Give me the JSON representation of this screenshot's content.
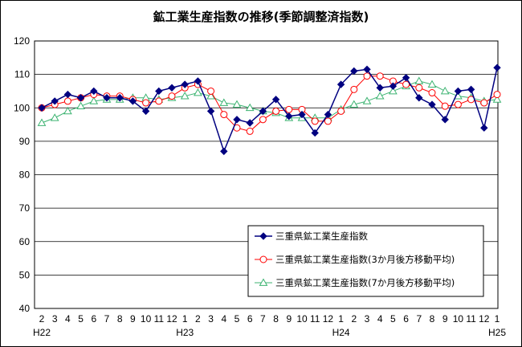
{
  "chart_data": {
    "type": "line",
    "title": "鉱工業生産指数の推移(季節調整済指数)",
    "ylim": [
      40,
      120
    ],
    "yticks": [
      40,
      50,
      60,
      70,
      80,
      90,
      100,
      110,
      120
    ],
    "categories": [
      "2",
      "3",
      "4",
      "5",
      "6",
      "7",
      "8",
      "9",
      "10",
      "11",
      "12",
      "1",
      "2",
      "3",
      "4",
      "5",
      "6",
      "7",
      "8",
      "9",
      "10",
      "11",
      "12",
      "1",
      "2",
      "3",
      "4",
      "5",
      "6",
      "7",
      "8",
      "9",
      "10",
      "11",
      "12",
      "1"
    ],
    "year_labels": [
      {
        "label": "H22",
        "index": 0
      },
      {
        "label": "H23",
        "index": 11
      },
      {
        "label": "H24",
        "index": 23
      },
      {
        "label": "H25",
        "index": 35
      }
    ],
    "grid": true,
    "legend_position": "bottom-right",
    "series": [
      {
        "name": "三重県鉱工業生産指数",
        "color": "#000080",
        "marker": "diamond",
        "values": [
          100,
          102,
          104,
          103,
          105,
          103,
          103,
          102,
          99,
          105,
          106,
          107,
          108,
          99,
          87,
          96.5,
          95.5,
          99,
          102.5,
          97.5,
          98,
          92.5,
          98,
          107,
          111,
          111.5,
          106,
          106.5,
          109,
          103,
          101,
          96.5,
          105,
          105.5,
          94,
          112
        ]
      },
      {
        "name": "三重県鉱工業生産指数(3か月後方移動平均)",
        "color": "#ff0000",
        "marker": "circle",
        "values": [
          100,
          101,
          102,
          103,
          104,
          103.5,
          103.5,
          102.5,
          101.5,
          102,
          103.5,
          106,
          107,
          105,
          98,
          94,
          93,
          96.5,
          99,
          99.5,
          99.5,
          96,
          96,
          99,
          105.5,
          109.5,
          109.5,
          108,
          107,
          106,
          104.5,
          100.5,
          101,
          102.5,
          101.5,
          104
        ]
      },
      {
        "name": "三重県鉱工業生産指数(7か月後方移動平均)",
        "color": "#3cb371",
        "marker": "triangle",
        "values": [
          95.5,
          97,
          99,
          100.5,
          102,
          102.5,
          102.5,
          103,
          103,
          102.5,
          103,
          103.5,
          104.5,
          103.5,
          101.5,
          101,
          100,
          99,
          98.5,
          97,
          97,
          97,
          97,
          99.5,
          101,
          102,
          103.5,
          105,
          106.5,
          108,
          107,
          105,
          103.5,
          103,
          102,
          102.5
        ]
      }
    ]
  }
}
